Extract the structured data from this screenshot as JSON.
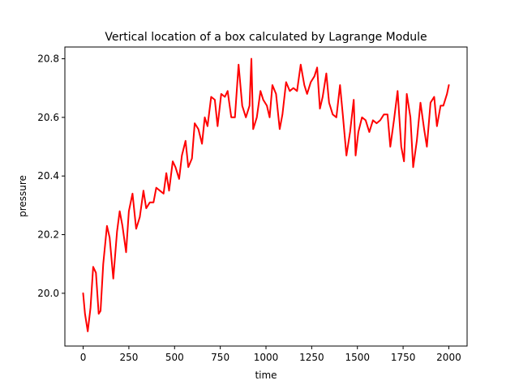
{
  "chart_data": {
    "type": "line",
    "title": "Vertical location of a box calculated by Lagrange Module",
    "xlabel": "time",
    "ylabel": "pressure",
    "xlim": [
      -100,
      2100
    ],
    "ylim": [
      19.82,
      20.84
    ],
    "xticks": [
      0,
      250,
      500,
      750,
      1000,
      1250,
      1500,
      1750,
      2000
    ],
    "xtick_labels": [
      "0",
      "250",
      "500",
      "750",
      "1000",
      "1250",
      "1500",
      "1750",
      "2000"
    ],
    "yticks": [
      20.0,
      20.2,
      20.4,
      20.6,
      20.8
    ],
    "ytick_labels": [
      "20.0",
      "20.2",
      "20.4",
      "20.6",
      "20.8"
    ],
    "grid": false,
    "series": [
      {
        "color": "#ff0000",
        "points": [
          [
            0,
            20.0
          ],
          [
            10,
            19.93
          ],
          [
            25,
            19.87
          ],
          [
            40,
            19.95
          ],
          [
            55,
            20.09
          ],
          [
            70,
            20.07
          ],
          [
            85,
            19.93
          ],
          [
            95,
            19.94
          ],
          [
            110,
            20.1
          ],
          [
            130,
            20.23
          ],
          [
            145,
            20.19
          ],
          [
            165,
            20.05
          ],
          [
            185,
            20.21
          ],
          [
            200,
            20.28
          ],
          [
            215,
            20.23
          ],
          [
            235,
            20.14
          ],
          [
            250,
            20.28
          ],
          [
            270,
            20.34
          ],
          [
            290,
            20.22
          ],
          [
            310,
            20.26
          ],
          [
            330,
            20.35
          ],
          [
            345,
            20.29
          ],
          [
            365,
            20.31
          ],
          [
            385,
            20.31
          ],
          [
            400,
            20.36
          ],
          [
            420,
            20.35
          ],
          [
            440,
            20.34
          ],
          [
            455,
            20.41
          ],
          [
            470,
            20.35
          ],
          [
            490,
            20.45
          ],
          [
            505,
            20.43
          ],
          [
            525,
            20.39
          ],
          [
            540,
            20.47
          ],
          [
            560,
            20.52
          ],
          [
            575,
            20.43
          ],
          [
            595,
            20.46
          ],
          [
            610,
            20.58
          ],
          [
            630,
            20.56
          ],
          [
            650,
            20.51
          ],
          [
            665,
            20.6
          ],
          [
            680,
            20.57
          ],
          [
            700,
            20.67
          ],
          [
            720,
            20.66
          ],
          [
            735,
            20.57
          ],
          [
            755,
            20.68
          ],
          [
            775,
            20.67
          ],
          [
            790,
            20.69
          ],
          [
            810,
            20.6
          ],
          [
            830,
            20.6
          ],
          [
            850,
            20.78
          ],
          [
            870,
            20.64
          ],
          [
            890,
            20.6
          ],
          [
            910,
            20.64
          ],
          [
            920,
            20.8
          ],
          [
            930,
            20.56
          ],
          [
            950,
            20.6
          ],
          [
            970,
            20.69
          ],
          [
            985,
            20.66
          ],
          [
            1005,
            20.64
          ],
          [
            1020,
            20.6
          ],
          [
            1035,
            20.71
          ],
          [
            1055,
            20.68
          ],
          [
            1075,
            20.56
          ],
          [
            1090,
            20.61
          ],
          [
            1110,
            20.72
          ],
          [
            1130,
            20.69
          ],
          [
            1150,
            20.7
          ],
          [
            1170,
            20.69
          ],
          [
            1190,
            20.78
          ],
          [
            1210,
            20.71
          ],
          [
            1225,
            20.68
          ],
          [
            1245,
            20.72
          ],
          [
            1265,
            20.74
          ],
          [
            1280,
            20.77
          ],
          [
            1295,
            20.63
          ],
          [
            1310,
            20.67
          ],
          [
            1330,
            20.75
          ],
          [
            1345,
            20.65
          ],
          [
            1365,
            20.61
          ],
          [
            1385,
            20.6
          ],
          [
            1405,
            20.71
          ],
          [
            1420,
            20.61
          ],
          [
            1440,
            20.47
          ],
          [
            1460,
            20.55
          ],
          [
            1480,
            20.66
          ],
          [
            1490,
            20.47
          ],
          [
            1505,
            20.55
          ],
          [
            1525,
            20.6
          ],
          [
            1545,
            20.59
          ],
          [
            1565,
            20.55
          ],
          [
            1585,
            20.59
          ],
          [
            1605,
            20.58
          ],
          [
            1625,
            20.59
          ],
          [
            1645,
            20.61
          ],
          [
            1665,
            20.61
          ],
          [
            1680,
            20.5
          ],
          [
            1700,
            20.59
          ],
          [
            1720,
            20.69
          ],
          [
            1740,
            20.5
          ],
          [
            1755,
            20.45
          ],
          [
            1770,
            20.68
          ],
          [
            1790,
            20.6
          ],
          [
            1805,
            20.43
          ],
          [
            1825,
            20.52
          ],
          [
            1845,
            20.65
          ],
          [
            1865,
            20.56
          ],
          [
            1880,
            20.5
          ],
          [
            1900,
            20.65
          ],
          [
            1920,
            20.67
          ],
          [
            1935,
            20.57
          ],
          [
            1955,
            20.64
          ],
          [
            1970,
            20.64
          ],
          [
            1990,
            20.68
          ],
          [
            2000,
            20.71
          ]
        ]
      }
    ]
  }
}
